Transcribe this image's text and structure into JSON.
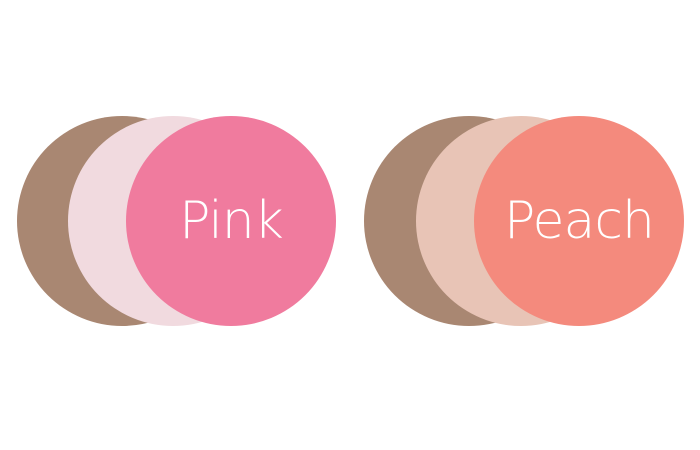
{
  "swatches": [
    {
      "label": "Pink",
      "colors": {
        "back": "#a98772",
        "middle": "#f1dadf",
        "front": "#f07b9e"
      }
    },
    {
      "label": "Peach",
      "colors": {
        "back": "#a98772",
        "middle": "#e8c4b6",
        "front": "#f48a7d"
      }
    }
  ]
}
